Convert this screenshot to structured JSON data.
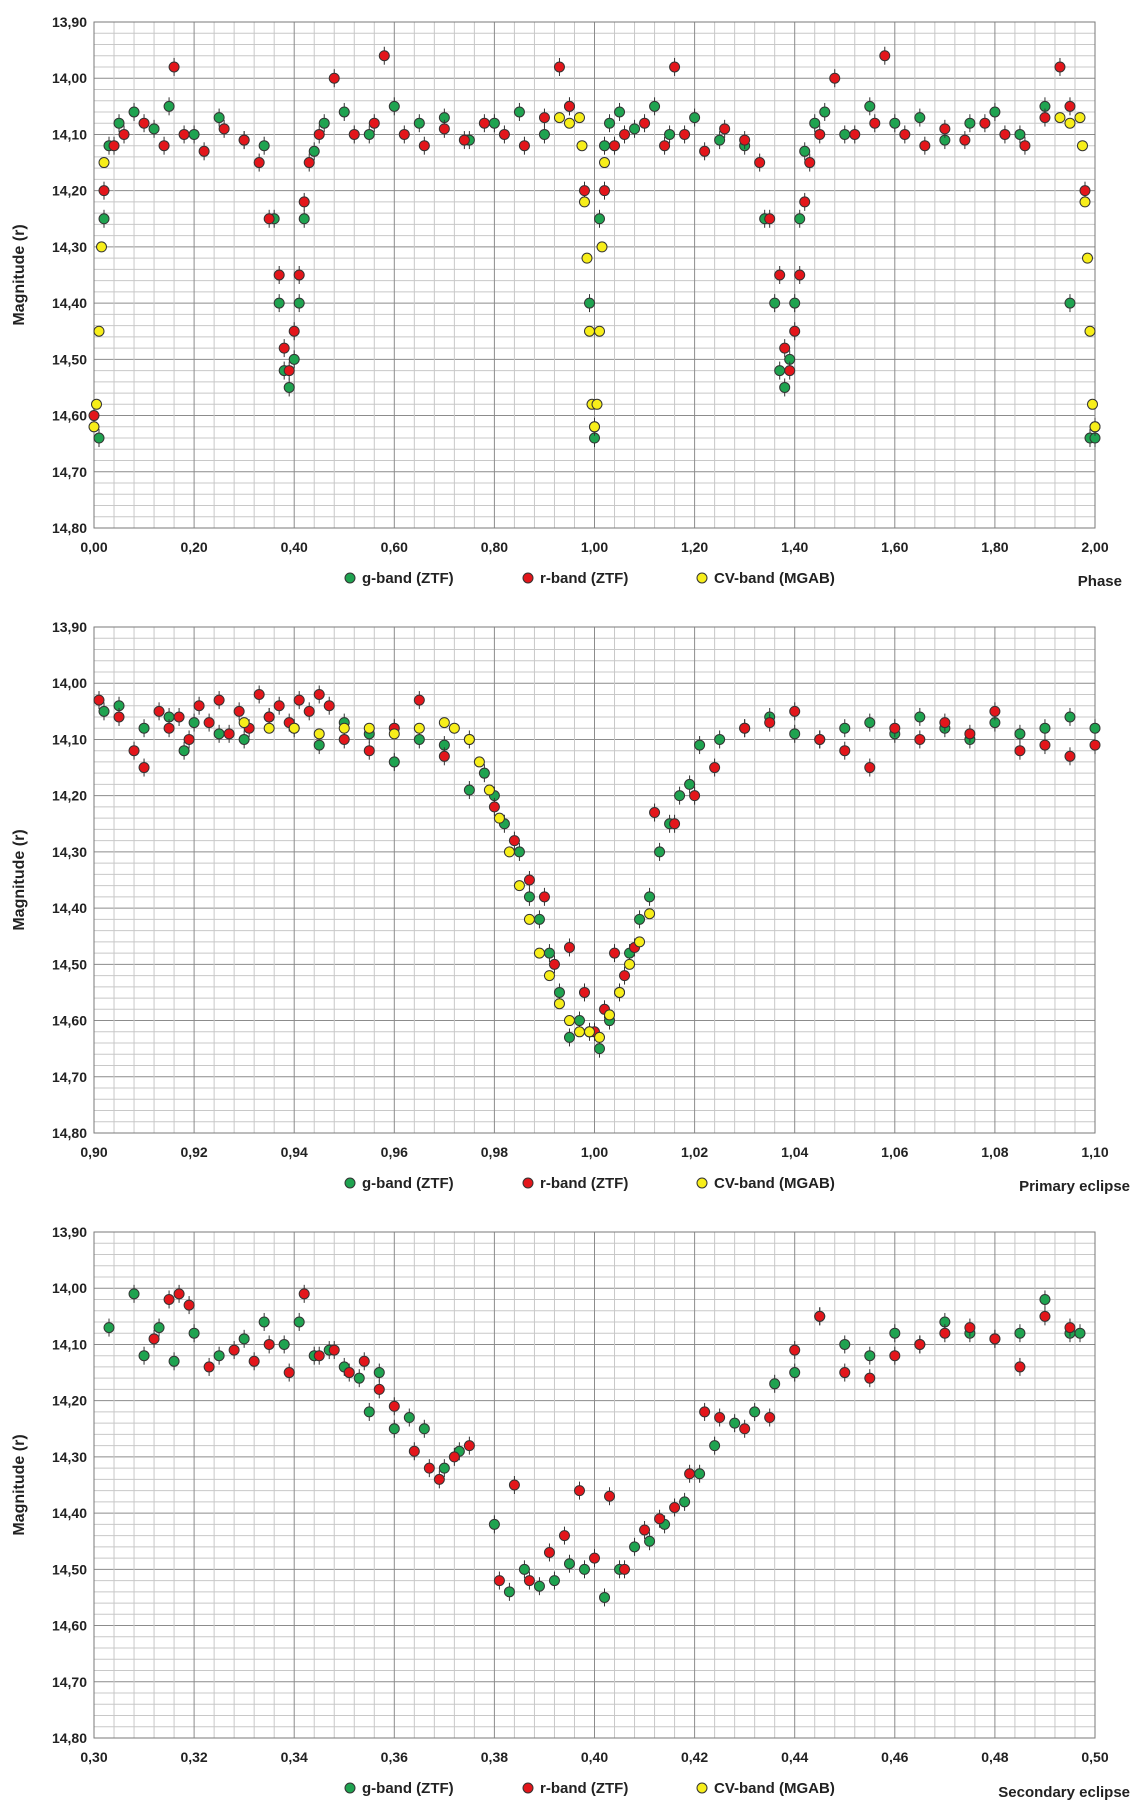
{
  "colors": {
    "g_band": "#1fa350",
    "r_band": "#e3161b",
    "cv_band": "#f7ee1a",
    "marker_edge": "#333333",
    "grid_minor": "#c8c8c8",
    "grid_major": "#8c8c8c"
  },
  "chart_data": [
    {
      "type": "scatter",
      "ylabel": "Magnitude (r)",
      "xlabel": "Phase",
      "xlim": [
        0.0,
        2.0
      ],
      "ylim": [
        13.9,
        14.8
      ],
      "y_inverted": true,
      "x_tick_labels": [
        "0,00",
        "0,20",
        "0,40",
        "0,60",
        "0,80",
        "1,00",
        "1,20",
        "1,40",
        "1,60",
        "1,80",
        "2,00"
      ],
      "y_tick_labels": [
        "13,90",
        "14,00",
        "14,10",
        "14,20",
        "14,30",
        "14,40",
        "14,50",
        "14,60",
        "14,70",
        "14,80"
      ],
      "legend": [
        "g-band (ZTF)",
        "r-band (ZTF)",
        "CV-band (MGAB)"
      ],
      "legend_position": "bottom",
      "grid": true,
      "series": [
        {
          "name": "g-band (ZTF)",
          "x": [
            0.01,
            0.02,
            0.03,
            0.05,
            0.08,
            0.12,
            0.15,
            0.2,
            0.25,
            0.3,
            0.34,
            0.36,
            0.37,
            0.38,
            0.39,
            0.4,
            0.41,
            0.42,
            0.44,
            0.46,
            0.5,
            0.55,
            0.6,
            0.65,
            0.7,
            0.75,
            0.8,
            0.85,
            0.9,
            0.95,
            0.99,
            1.0,
            1.01,
            1.02,
            1.03,
            1.05,
            1.08,
            1.12,
            1.15,
            1.2,
            1.25,
            1.3,
            1.34,
            1.36,
            1.37,
            1.38,
            1.39,
            1.4,
            1.41,
            1.42,
            1.44,
            1.46,
            1.5,
            1.55,
            1.6,
            1.65,
            1.7,
            1.75,
            1.8,
            1.85,
            1.9,
            1.95,
            1.99,
            2.0
          ],
          "y": [
            14.64,
            14.25,
            14.12,
            14.08,
            14.06,
            14.09,
            14.05,
            14.1,
            14.07,
            14.11,
            14.12,
            14.25,
            14.4,
            14.52,
            14.55,
            14.5,
            14.4,
            14.25,
            14.13,
            14.08,
            14.06,
            14.1,
            14.05,
            14.08,
            14.07,
            14.11,
            14.08,
            14.06,
            14.1,
            14.05,
            14.4,
            14.64,
            14.25,
            14.12,
            14.08,
            14.06,
            14.09,
            14.05,
            14.1,
            14.07,
            14.11,
            14.12,
            14.25,
            14.4,
            14.52,
            14.55,
            14.5,
            14.4,
            14.25,
            14.13,
            14.08,
            14.06,
            14.1,
            14.05,
            14.08,
            14.07,
            14.11,
            14.08,
            14.06,
            14.1,
            14.05,
            14.4,
            14.64,
            14.64
          ]
        },
        {
          "name": "r-band (ZTF)",
          "x": [
            0.0,
            0.02,
            0.04,
            0.06,
            0.1,
            0.14,
            0.16,
            0.18,
            0.22,
            0.26,
            0.3,
            0.33,
            0.35,
            0.37,
            0.38,
            0.39,
            0.4,
            0.41,
            0.42,
            0.43,
            0.45,
            0.48,
            0.52,
            0.56,
            0.58,
            0.62,
            0.66,
            0.7,
            0.74,
            0.78,
            0.82,
            0.86,
            0.9,
            0.93,
            0.95,
            0.98,
            1.0,
            1.02,
            1.04,
            1.06,
            1.1,
            1.14,
            1.16,
            1.18,
            1.22,
            1.26,
            1.3,
            1.33,
            1.35,
            1.37,
            1.38,
            1.39,
            1.4,
            1.41,
            1.42,
            1.43,
            1.45,
            1.48,
            1.52,
            1.56,
            1.58,
            1.62,
            1.66,
            1.7,
            1.74,
            1.78,
            1.82,
            1.86,
            1.9,
            1.93,
            1.95,
            1.98,
            2.0
          ],
          "y": [
            14.6,
            14.2,
            14.12,
            14.1,
            14.08,
            14.12,
            13.98,
            14.1,
            14.13,
            14.09,
            14.11,
            14.15,
            14.25,
            14.35,
            14.48,
            14.52,
            14.45,
            14.35,
            14.22,
            14.15,
            14.1,
            14.0,
            14.1,
            14.08,
            13.96,
            14.1,
            14.12,
            14.09,
            14.11,
            14.08,
            14.1,
            14.12,
            14.07,
            13.98,
            14.05,
            14.2,
            14.62,
            14.2,
            14.12,
            14.1,
            14.08,
            14.12,
            13.98,
            14.1,
            14.13,
            14.09,
            14.11,
            14.15,
            14.25,
            14.35,
            14.48,
            14.52,
            14.45,
            14.35,
            14.22,
            14.15,
            14.1,
            14.0,
            14.1,
            14.08,
            13.96,
            14.1,
            14.12,
            14.09,
            14.11,
            14.08,
            14.1,
            14.12,
            14.07,
            13.98,
            14.05,
            14.2,
            14.62
          ]
        },
        {
          "name": "CV-band (MGAB)",
          "x": [
            0.0,
            0.005,
            0.01,
            0.015,
            0.02,
            0.93,
            0.95,
            0.97,
            0.975,
            0.98,
            0.985,
            0.99,
            0.995,
            1.0,
            1.005,
            1.01,
            1.015,
            1.02,
            1.93,
            1.95,
            1.97,
            1.975,
            1.98,
            1.985,
            1.99,
            1.995,
            2.0
          ],
          "y": [
            14.62,
            14.58,
            14.45,
            14.3,
            14.15,
            14.07,
            14.08,
            14.07,
            14.12,
            14.22,
            14.32,
            14.45,
            14.58,
            14.62,
            14.58,
            14.45,
            14.3,
            14.15,
            14.07,
            14.08,
            14.07,
            14.12,
            14.22,
            14.32,
            14.45,
            14.58,
            14.62
          ]
        }
      ]
    },
    {
      "type": "scatter",
      "ylabel": "Magnitude (r)",
      "xlabel": "Primary eclipse",
      "xlim": [
        0.9,
        1.1
      ],
      "ylim": [
        13.9,
        14.8
      ],
      "y_inverted": true,
      "x_tick_labels": [
        "0,90",
        "0,92",
        "0,94",
        "0,96",
        "0,98",
        "1,00",
        "1,02",
        "1,04",
        "1,06",
        "1,08",
        "1,10"
      ],
      "y_tick_labels": [
        "13,90",
        "14,00",
        "14,10",
        "14,20",
        "14,30",
        "14,40",
        "14,50",
        "14,60",
        "14,70",
        "14,80"
      ],
      "legend": [
        "g-band (ZTF)",
        "r-band (ZTF)",
        "CV-band (MGAB)"
      ],
      "legend_position": "bottom",
      "grid": true,
      "series": [
        {
          "name": "g-band (ZTF)",
          "x": [
            0.902,
            0.905,
            0.91,
            0.915,
            0.918,
            0.92,
            0.925,
            0.93,
            0.935,
            0.94,
            0.945,
            0.95,
            0.955,
            0.96,
            0.965,
            0.97,
            0.975,
            0.978,
            0.98,
            0.982,
            0.985,
            0.987,
            0.989,
            0.991,
            0.993,
            0.995,
            0.997,
            0.999,
            1.001,
            1.003,
            1.005,
            1.007,
            1.009,
            1.011,
            1.013,
            1.015,
            1.017,
            1.019,
            1.021,
            1.025,
            1.03,
            1.035,
            1.04,
            1.045,
            1.05,
            1.055,
            1.06,
            1.065,
            1.07,
            1.075,
            1.08,
            1.085,
            1.09,
            1.095,
            1.1
          ],
          "y": [
            14.05,
            14.04,
            14.08,
            14.06,
            14.12,
            14.07,
            14.09,
            14.1,
            14.06,
            14.08,
            14.11,
            14.07,
            14.09,
            14.14,
            14.1,
            14.11,
            14.19,
            14.16,
            14.2,
            14.25,
            14.3,
            14.38,
            14.42,
            14.48,
            14.55,
            14.63,
            14.6,
            14.62,
            14.65,
            14.6,
            14.55,
            14.48,
            14.42,
            14.38,
            14.3,
            14.25,
            14.2,
            14.18,
            14.11,
            14.1,
            14.08,
            14.06,
            14.09,
            14.1,
            14.08,
            14.07,
            14.09,
            14.06,
            14.08,
            14.1,
            14.07,
            14.09,
            14.08,
            14.06,
            14.08
          ]
        },
        {
          "name": "r-band (ZTF)",
          "x": [
            0.901,
            0.905,
            0.908,
            0.91,
            0.913,
            0.915,
            0.917,
            0.919,
            0.921,
            0.923,
            0.925,
            0.927,
            0.929,
            0.931,
            0.933,
            0.935,
            0.937,
            0.939,
            0.941,
            0.943,
            0.945,
            0.947,
            0.95,
            0.955,
            0.96,
            0.965,
            0.97,
            0.975,
            0.98,
            0.984,
            0.987,
            0.99,
            0.992,
            0.995,
            0.998,
            1.0,
            1.002,
            1.004,
            1.006,
            1.008,
            1.012,
            1.016,
            1.02,
            1.024,
            1.03,
            1.035,
            1.04,
            1.045,
            1.05,
            1.055,
            1.06,
            1.065,
            1.07,
            1.075,
            1.08,
            1.085,
            1.09,
            1.095,
            1.1
          ],
          "y": [
            14.03,
            14.06,
            14.12,
            14.15,
            14.05,
            14.08,
            14.06,
            14.1,
            14.04,
            14.07,
            14.03,
            14.09,
            14.05,
            14.08,
            14.02,
            14.06,
            14.04,
            14.07,
            14.03,
            14.05,
            14.02,
            14.04,
            14.1,
            14.12,
            14.08,
            14.03,
            14.13,
            14.1,
            14.22,
            14.28,
            14.35,
            14.38,
            14.5,
            14.47,
            14.55,
            14.62,
            14.58,
            14.48,
            14.52,
            14.47,
            14.23,
            14.25,
            14.2,
            14.15,
            14.08,
            14.07,
            14.05,
            14.1,
            14.12,
            14.15,
            14.08,
            14.1,
            14.07,
            14.09,
            14.05,
            14.12,
            14.11,
            14.13,
            14.11
          ]
        },
        {
          "name": "CV-band (MGAB)",
          "x": [
            0.93,
            0.935,
            0.94,
            0.945,
            0.95,
            0.955,
            0.96,
            0.965,
            0.97,
            0.972,
            0.975,
            0.977,
            0.979,
            0.981,
            0.983,
            0.985,
            0.987,
            0.989,
            0.991,
            0.993,
            0.995,
            0.997,
            0.999,
            1.001,
            1.003,
            1.005,
            1.007,
            1.009,
            1.011
          ],
          "y": [
            14.07,
            14.08,
            14.08,
            14.09,
            14.08,
            14.08,
            14.09,
            14.08,
            14.07,
            14.08,
            14.1,
            14.14,
            14.19,
            14.24,
            14.3,
            14.36,
            14.42,
            14.48,
            14.52,
            14.57,
            14.6,
            14.62,
            14.62,
            14.63,
            14.59,
            14.55,
            14.5,
            14.46,
            14.41
          ]
        }
      ]
    },
    {
      "type": "scatter",
      "ylabel": "Magnitude (r)",
      "xlabel": "Secondary eclipse",
      "xlim": [
        0.3,
        0.5
      ],
      "ylim": [
        13.9,
        14.8
      ],
      "y_inverted": true,
      "x_tick_labels": [
        "0,30",
        "0,32",
        "0,34",
        "0,36",
        "0,38",
        "0,40",
        "0,42",
        "0,44",
        "0,46",
        "0,48",
        "0,50"
      ],
      "y_tick_labels": [
        "13,90",
        "14,00",
        "14,10",
        "14,20",
        "14,30",
        "14,40",
        "14,50",
        "14,60",
        "14,70",
        "14,80"
      ],
      "legend": [
        "g-band (ZTF)",
        "r-band (ZTF)",
        "CV-band (MGAB)"
      ],
      "legend_position": "bottom",
      "grid": true,
      "series": [
        {
          "name": "g-band (ZTF)",
          "x": [
            0.303,
            0.308,
            0.31,
            0.313,
            0.316,
            0.32,
            0.325,
            0.33,
            0.334,
            0.338,
            0.341,
            0.344,
            0.347,
            0.35,
            0.353,
            0.355,
            0.357,
            0.36,
            0.363,
            0.366,
            0.37,
            0.373,
            0.38,
            0.383,
            0.386,
            0.389,
            0.392,
            0.395,
            0.398,
            0.402,
            0.405,
            0.408,
            0.411,
            0.414,
            0.418,
            0.421,
            0.424,
            0.428,
            0.432,
            0.436,
            0.44,
            0.445,
            0.45,
            0.455,
            0.46,
            0.465,
            0.47,
            0.475,
            0.48,
            0.485,
            0.49,
            0.495,
            0.497
          ],
          "y": [
            14.07,
            14.01,
            14.12,
            14.07,
            14.13,
            14.08,
            14.12,
            14.09,
            14.06,
            14.1,
            14.06,
            14.12,
            14.11,
            14.14,
            14.16,
            14.22,
            14.15,
            14.25,
            14.23,
            14.25,
            14.32,
            14.29,
            14.42,
            14.54,
            14.5,
            14.53,
            14.52,
            14.49,
            14.5,
            14.55,
            14.5,
            14.46,
            14.45,
            14.42,
            14.38,
            14.33,
            14.28,
            14.24,
            14.22,
            14.17,
            14.15,
            14.05,
            14.1,
            14.12,
            14.08,
            14.1,
            14.06,
            14.08,
            14.09,
            14.08,
            14.02,
            14.08,
            14.08
          ]
        },
        {
          "name": "r-band (ZTF)",
          "x": [
            0.312,
            0.315,
            0.317,
            0.319,
            0.323,
            0.328,
            0.332,
            0.335,
            0.339,
            0.342,
            0.345,
            0.348,
            0.351,
            0.354,
            0.357,
            0.36,
            0.364,
            0.367,
            0.369,
            0.372,
            0.375,
            0.381,
            0.384,
            0.387,
            0.391,
            0.394,
            0.397,
            0.4,
            0.403,
            0.406,
            0.41,
            0.413,
            0.416,
            0.419,
            0.422,
            0.425,
            0.43,
            0.435,
            0.44,
            0.445,
            0.45,
            0.455,
            0.46,
            0.465,
            0.47,
            0.475,
            0.48,
            0.485,
            0.49,
            0.495
          ],
          "y": [
            14.09,
            14.02,
            14.01,
            14.03,
            14.14,
            14.11,
            14.13,
            14.1,
            14.15,
            14.01,
            14.12,
            14.11,
            14.15,
            14.13,
            14.18,
            14.21,
            14.29,
            14.32,
            14.34,
            14.3,
            14.28,
            14.52,
            14.35,
            14.52,
            14.47,
            14.44,
            14.36,
            14.48,
            14.37,
            14.5,
            14.43,
            14.41,
            14.39,
            14.33,
            14.22,
            14.23,
            14.25,
            14.23,
            14.11,
            14.05,
            14.15,
            14.16,
            14.12,
            14.1,
            14.08,
            14.07,
            14.09,
            14.14,
            14.05,
            14.07
          ]
        },
        {
          "name": "CV-band (MGAB)",
          "x": [],
          "y": []
        }
      ]
    }
  ]
}
